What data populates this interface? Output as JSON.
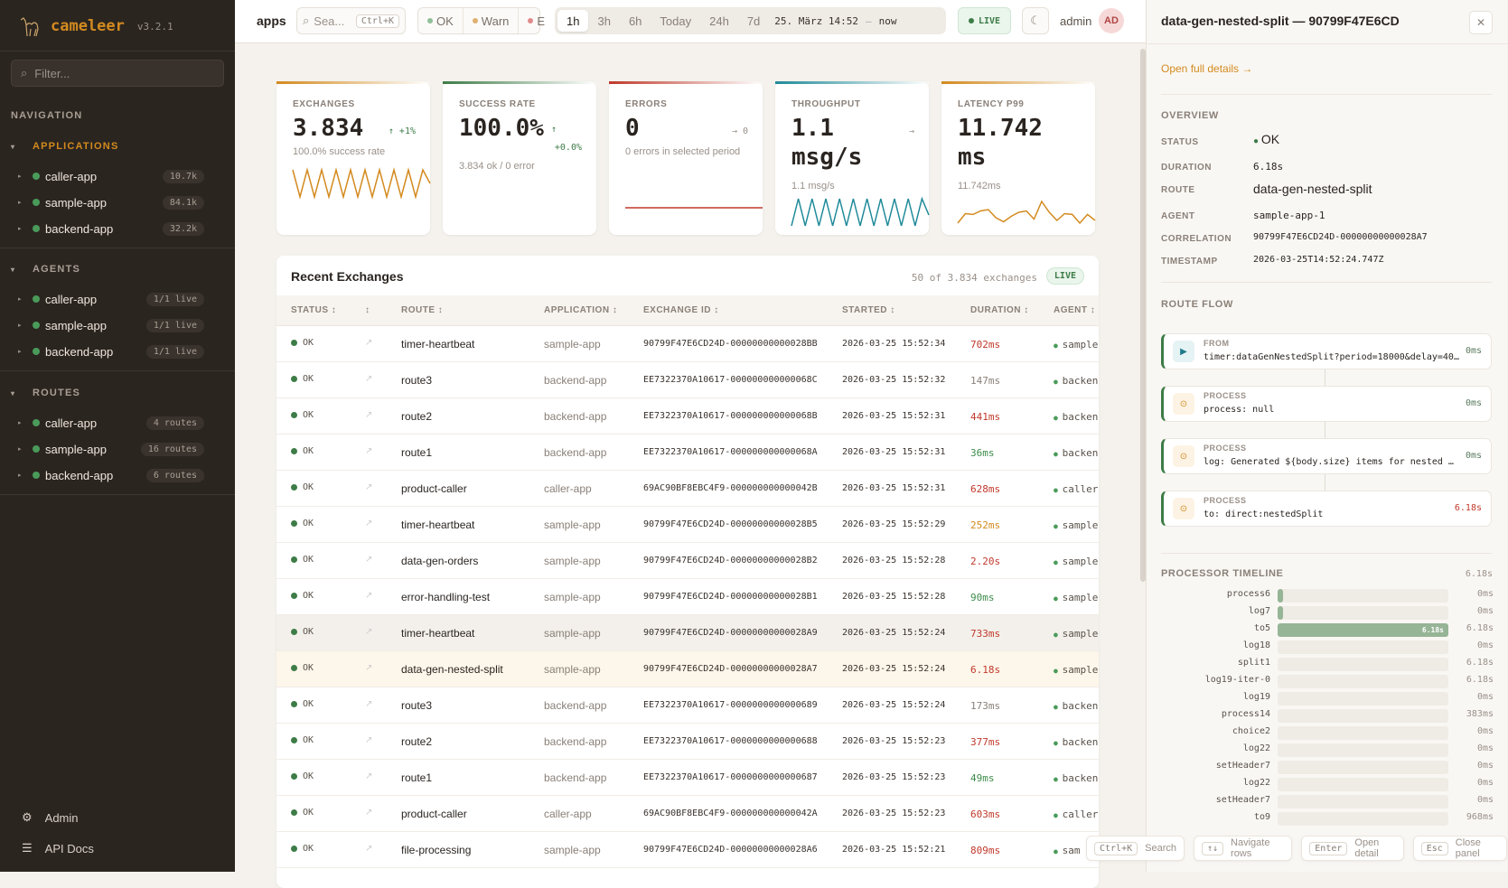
{
  "brand": {
    "name": "cameleer",
    "version": "v3.2.1"
  },
  "sidebar": {
    "filter_placeholder": "Filter...",
    "nav_heading": "NAVIGATION",
    "sections": [
      {
        "title": "APPLICATIONS",
        "active": true,
        "items": [
          {
            "label": "caller-app",
            "badge": "10.7k"
          },
          {
            "label": "sample-app",
            "badge": "84.1k"
          },
          {
            "label": "backend-app",
            "badge": "32.2k"
          }
        ]
      },
      {
        "title": "AGENTS",
        "active": false,
        "items": [
          {
            "label": "caller-app",
            "badge": "1/1 live"
          },
          {
            "label": "sample-app",
            "badge": "1/1 live"
          },
          {
            "label": "backend-app",
            "badge": "1/1 live"
          }
        ]
      },
      {
        "title": "ROUTES",
        "active": false,
        "items": [
          {
            "label": "caller-app",
            "badge": "4 routes"
          },
          {
            "label": "sample-app",
            "badge": "16 routes"
          },
          {
            "label": "backend-app",
            "badge": "6 routes"
          }
        ]
      }
    ],
    "footer": {
      "admin": "Admin",
      "api_docs": "API Docs"
    }
  },
  "topbar": {
    "breadcrumb": "apps",
    "search_placeholder": "Sea...",
    "search_shortcut": "Ctrl+K",
    "status_filters": [
      {
        "label": "OK",
        "color": "#8fbf98"
      },
      {
        "label": "Warn",
        "color": "#e0b070"
      },
      {
        "label": "E",
        "color": "#e08a8a"
      }
    ],
    "time_ranges": [
      "1h",
      "3h",
      "6h",
      "Today",
      "24h",
      "7d"
    ],
    "selected_range": "1h",
    "range_from": "25. März 14:52",
    "range_sep": "—",
    "range_to": "now",
    "live": "LIVE",
    "user": "admin",
    "avatar": "AD"
  },
  "kpis": [
    {
      "label": "EXCHANGES",
      "value": "3.834",
      "delta": "↑ +1%",
      "sub": "100.0% success rate",
      "color": "#d38a1e",
      "spark": [
        1,
        0,
        1,
        0,
        1,
        0,
        1,
        0,
        1,
        0,
        1,
        0,
        1,
        0,
        1,
        0,
        1,
        0,
        1,
        0.5
      ]
    },
    {
      "label": "SUCCESS RATE",
      "value": "100.0%",
      "delta_arrow": "↑",
      "delta": "+0.0%",
      "sub": "3.834 ok / 0 error",
      "color": "#3d7c47"
    },
    {
      "label": "ERRORS",
      "value": "0",
      "delta": "→ 0",
      "sub": "0 errors in selected period",
      "color": "#c0392b",
      "spark": [
        0,
        0,
        0,
        0,
        0,
        0
      ]
    },
    {
      "label": "THROUGHPUT",
      "value": "1.1 msg/s",
      "delta": "→",
      "sub": "1.1 msg/s",
      "color": "#1f8a99",
      "spark": [
        0,
        1,
        0,
        1,
        0,
        1,
        0,
        1,
        0,
        1,
        0,
        1,
        0,
        1,
        0,
        1,
        0,
        1,
        0,
        1,
        0.4
      ]
    },
    {
      "label": "LATENCY P99",
      "value": "11.742 ms",
      "delta": "",
      "sub": "11.742ms",
      "color": "#d38a1e",
      "spark": [
        0.1,
        0.45,
        0.42,
        0.55,
        0.6,
        0.3,
        0.15,
        0.35,
        0.5,
        0.55,
        0.25,
        0.9,
        0.5,
        0.2,
        0.45,
        0.42,
        0.1,
        0.42,
        0.2
      ]
    }
  ],
  "exchanges": {
    "title": "Recent Exchanges",
    "count": "50 of 3.834 exchanges",
    "live": "LIVE",
    "columns": [
      "STATUS ↕",
      "↕",
      "ROUTE ↕",
      "APPLICATION ↕",
      "EXCHANGE ID ↕",
      "STARTED ↕",
      "DURATION ↕",
      "AGENT ↕"
    ],
    "rows": [
      {
        "status": "OK",
        "route": "timer-heartbeat",
        "app": "sample-app",
        "id": "90799F47E6CD24D-00000000000028BB",
        "started": "2026-03-25 15:52:34",
        "duration": "702ms",
        "tone": "red",
        "agent": "sample"
      },
      {
        "status": "OK",
        "route": "route3",
        "app": "backend-app",
        "id": "EE7322370A10617-000000000000068C",
        "started": "2026-03-25 15:52:32",
        "duration": "147ms",
        "tone": "gray",
        "agent": "backen"
      },
      {
        "status": "OK",
        "route": "route2",
        "app": "backend-app",
        "id": "EE7322370A10617-000000000000068B",
        "started": "2026-03-25 15:52:31",
        "duration": "441ms",
        "tone": "red",
        "agent": "backen"
      },
      {
        "status": "OK",
        "route": "route1",
        "app": "backend-app",
        "id": "EE7322370A10617-000000000000068A",
        "started": "2026-03-25 15:52:31",
        "duration": "36ms",
        "tone": "green",
        "agent": "backen"
      },
      {
        "status": "OK",
        "route": "product-caller",
        "app": "caller-app",
        "id": "69AC90BF8EBC4F9-000000000000042B",
        "started": "2026-03-25 15:52:31",
        "duration": "628ms",
        "tone": "red",
        "agent": "caller"
      },
      {
        "status": "OK",
        "route": "timer-heartbeat",
        "app": "sample-app",
        "id": "90799F47E6CD24D-00000000000028B5",
        "started": "2026-03-25 15:52:29",
        "duration": "252ms",
        "tone": "orange",
        "agent": "sample"
      },
      {
        "status": "OK",
        "route": "data-gen-orders",
        "app": "sample-app",
        "id": "90799F47E6CD24D-00000000000028B2",
        "started": "2026-03-25 15:52:28",
        "duration": "2.20s",
        "tone": "red",
        "agent": "sample"
      },
      {
        "status": "OK",
        "route": "error-handling-test",
        "app": "sample-app",
        "id": "90799F47E6CD24D-00000000000028B1",
        "started": "2026-03-25 15:52:28",
        "duration": "90ms",
        "tone": "green",
        "agent": "sample"
      },
      {
        "status": "OK",
        "route": "timer-heartbeat",
        "app": "sample-app",
        "id": "90799F47E6CD24D-00000000000028A9",
        "started": "2026-03-25 15:52:24",
        "duration": "733ms",
        "tone": "red",
        "agent": "sample",
        "state": "hov"
      },
      {
        "status": "OK",
        "route": "data-gen-nested-split",
        "app": "sample-app",
        "id": "90799F47E6CD24D-00000000000028A7",
        "started": "2026-03-25 15:52:24",
        "duration": "6.18s",
        "tone": "red",
        "agent": "sample",
        "state": "sel"
      },
      {
        "status": "OK",
        "route": "route3",
        "app": "backend-app",
        "id": "EE7322370A10617-0000000000000689",
        "started": "2026-03-25 15:52:24",
        "duration": "173ms",
        "tone": "gray",
        "agent": "backen"
      },
      {
        "status": "OK",
        "route": "route2",
        "app": "backend-app",
        "id": "EE7322370A10617-0000000000000688",
        "started": "2026-03-25 15:52:23",
        "duration": "377ms",
        "tone": "red",
        "agent": "backen"
      },
      {
        "status": "OK",
        "route": "route1",
        "app": "backend-app",
        "id": "EE7322370A10617-0000000000000687",
        "started": "2026-03-25 15:52:23",
        "duration": "49ms",
        "tone": "green",
        "agent": "backen"
      },
      {
        "status": "OK",
        "route": "product-caller",
        "app": "caller-app",
        "id": "69AC90BF8EBC4F9-000000000000042A",
        "started": "2026-03-25 15:52:23",
        "duration": "603ms",
        "tone": "red",
        "agent": "caller"
      },
      {
        "status": "OK",
        "route": "file-processing",
        "app": "sample-app",
        "id": "90799F47E6CD24D-00000000000028A6",
        "started": "2026-03-25 15:52:21",
        "duration": "809ms",
        "tone": "red",
        "agent": "sam"
      }
    ]
  },
  "detail": {
    "title": "data-gen-nested-split — 90799F47E6CD",
    "open_link": "Open full details →",
    "overview_heading": "OVERVIEW",
    "overview": [
      {
        "key": "STATUS",
        "value": "OK"
      },
      {
        "key": "DURATION",
        "value": "6.18s"
      },
      {
        "key": "ROUTE",
        "value": "data-gen-nested-split"
      },
      {
        "key": "AGENT",
        "value": "sample-app-1"
      },
      {
        "key": "CORRELATION",
        "value": "90799F47E6CD24D-00000000000028A7"
      },
      {
        "key": "TIMESTAMP",
        "value": "2026-03-25T14:52:24.747Z"
      }
    ],
    "flow_heading": "ROUTE FLOW",
    "flow": [
      {
        "type": "FROM",
        "value": "timer:dataGenNestedSplit?period=18000&delay=40…",
        "duration": "0ms",
        "icon": "play"
      },
      {
        "type": "PROCESS",
        "value": "process: null",
        "duration": "0ms",
        "icon": "gear"
      },
      {
        "type": "PROCESS",
        "value": "log: Generated ${body.size} items for nested …",
        "duration": "0ms",
        "icon": "gear"
      },
      {
        "type": "PROCESS",
        "value": "to: direct:nestedSplit",
        "duration": "6.18s",
        "icon": "gear",
        "slow": true
      }
    ],
    "timeline_heading": "PROCESSOR TIMELINE",
    "timeline_total": "6.18s",
    "timeline": [
      {
        "name": "process6",
        "value": "0ms",
        "fill": 0.03
      },
      {
        "name": "log7",
        "value": "0ms",
        "fill": 0.03
      },
      {
        "name": "to5",
        "value": "6.18s",
        "fill": 1,
        "bar_label": "6.18s"
      },
      {
        "name": "log18",
        "value": "0ms",
        "fill": 0
      },
      {
        "name": "split1",
        "value": "6.18s",
        "fill": 0
      },
      {
        "name": "log19-iter-0",
        "value": "6.18s",
        "fill": 0
      },
      {
        "name": "log19",
        "value": "0ms",
        "fill": 0
      },
      {
        "name": "process14",
        "value": "383ms",
        "fill": 0
      },
      {
        "name": "choice2",
        "value": "0ms",
        "fill": 0
      },
      {
        "name": "log22",
        "value": "0ms",
        "fill": 0
      },
      {
        "name": "setHeader7",
        "value": "0ms",
        "fill": 0
      },
      {
        "name": "log22",
        "value": "0ms",
        "fill": 0
      },
      {
        "name": "setHeader7",
        "value": "0ms",
        "fill": 0
      },
      {
        "name": "to9",
        "value": "968ms",
        "fill": 0
      }
    ]
  },
  "hints": [
    {
      "key": "Ctrl+K",
      "label": "Search"
    },
    {
      "key": "↑↓",
      "label": "Navigate rows"
    },
    {
      "key": "Enter",
      "label": "Open detail"
    },
    {
      "key": "Esc",
      "label": "Close panel"
    }
  ]
}
